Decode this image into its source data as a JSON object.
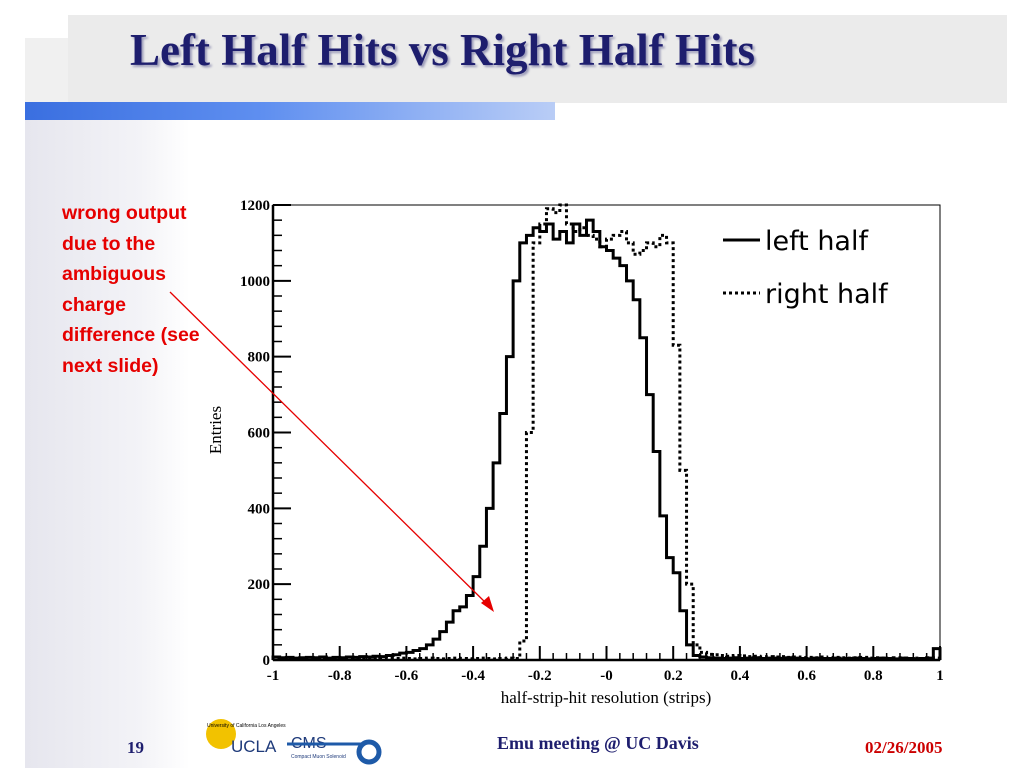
{
  "slide": {
    "title": "Left Half Hits vs Right Half Hits",
    "annotation_lines": [
      "wrong output",
      "due to the",
      "ambiguous",
      "charge",
      "difference (see",
      "next slide)"
    ],
    "footer": {
      "page_number": "19",
      "center_text": "Emu meeting @ UC Davis",
      "date": "02/26/2005"
    },
    "logo": {
      "university_text": "University of California Los Angeles",
      "ucla_text": "UCLA",
      "cms_text": "CMS",
      "cms_subtext": "Compact Muon Solenoid"
    },
    "colors": {
      "title": "#1e1e6e",
      "annotation": "#e60000",
      "footer_date": "#cc0000",
      "rule": "#3a6fe0"
    }
  },
  "chart_data": {
    "type": "line",
    "style": "step-histogram",
    "xlabel": "half-strip-hit resolution (strips)",
    "ylabel": "Entries",
    "xlim": [
      -1,
      1
    ],
    "ylim": [
      0,
      1200
    ],
    "x_ticks": [
      "-1",
      "-0.8",
      "-0.6",
      "-0.4",
      "-0.2",
      "-0",
      "0.2",
      "0.4",
      "0.6",
      "0.8",
      "1"
    ],
    "y_ticks": [
      "0",
      "200",
      "400",
      "600",
      "800",
      "1000",
      "1200"
    ],
    "legend_position": "top-right",
    "series": [
      {
        "name": "left half",
        "line_style": "solid",
        "x": [
          -1.0,
          -0.98,
          -0.96,
          -0.94,
          -0.92,
          -0.9,
          -0.88,
          -0.86,
          -0.84,
          -0.82,
          -0.8,
          -0.78,
          -0.76,
          -0.74,
          -0.72,
          -0.7,
          -0.68,
          -0.66,
          -0.64,
          -0.62,
          -0.6,
          -0.58,
          -0.56,
          -0.54,
          -0.52,
          -0.5,
          -0.48,
          -0.46,
          -0.44,
          -0.42,
          -0.4,
          -0.38,
          -0.36,
          -0.34,
          -0.32,
          -0.3,
          -0.28,
          -0.26,
          -0.24,
          -0.22,
          -0.2,
          -0.18,
          -0.16,
          -0.14,
          -0.12,
          -0.1,
          -0.08,
          -0.06,
          -0.04,
          -0.02,
          0.0,
          0.02,
          0.04,
          0.06,
          0.08,
          0.1,
          0.12,
          0.14,
          0.16,
          0.18,
          0.2,
          0.22,
          0.24,
          0.26,
          0.28,
          0.3,
          0.32,
          0.34,
          0.36,
          0.38,
          0.4,
          0.42,
          0.44,
          0.46,
          0.48,
          0.5,
          0.52,
          0.54,
          0.56,
          0.58,
          0.6,
          0.62,
          0.64,
          0.66,
          0.68,
          0.7,
          0.72,
          0.74,
          0.76,
          0.78,
          0.8,
          0.82,
          0.84,
          0.86,
          0.88,
          0.9,
          0.92,
          0.94,
          0.96,
          0.98
        ],
        "values": [
          8,
          6,
          7,
          5,
          6,
          7,
          6,
          8,
          5,
          7,
          6,
          8,
          7,
          9,
          8,
          10,
          9,
          12,
          14,
          18,
          20,
          25,
          30,
          40,
          55,
          75,
          100,
          130,
          140,
          170,
          220,
          300,
          400,
          520,
          650,
          800,
          1000,
          1100,
          1120,
          1140,
          1130,
          1150,
          1110,
          1130,
          1100,
          1150,
          1120,
          1160,
          1130,
          1090,
          1080,
          1060,
          1040,
          1000,
          950,
          850,
          700,
          550,
          380,
          270,
          230,
          130,
          40,
          12,
          8,
          6,
          5,
          4,
          5,
          6,
          4,
          5,
          6,
          4,
          5,
          5,
          4,
          6,
          5,
          4,
          3,
          5,
          4,
          4,
          5,
          3,
          4,
          5,
          4,
          3,
          4,
          5,
          4,
          3,
          5,
          4,
          3,
          4,
          5,
          30
        ]
      },
      {
        "name": "right half",
        "line_style": "dotted",
        "x": [
          -1.0,
          -0.98,
          -0.96,
          -0.94,
          -0.92,
          -0.9,
          -0.88,
          -0.86,
          -0.84,
          -0.82,
          -0.8,
          -0.78,
          -0.76,
          -0.74,
          -0.72,
          -0.7,
          -0.68,
          -0.66,
          -0.64,
          -0.62,
          -0.6,
          -0.58,
          -0.56,
          -0.54,
          -0.52,
          -0.5,
          -0.48,
          -0.46,
          -0.44,
          -0.42,
          -0.4,
          -0.38,
          -0.36,
          -0.34,
          -0.32,
          -0.3,
          -0.28,
          -0.26,
          -0.24,
          -0.22,
          -0.2,
          -0.18,
          -0.16,
          -0.14,
          -0.12,
          -0.1,
          -0.08,
          -0.06,
          -0.04,
          -0.02,
          0.0,
          0.02,
          0.04,
          0.06,
          0.08,
          0.1,
          0.12,
          0.14,
          0.16,
          0.18,
          0.2,
          0.22,
          0.24,
          0.26,
          0.28,
          0.3,
          0.32,
          0.34,
          0.36,
          0.38,
          0.4,
          0.42,
          0.44,
          0.46,
          0.48,
          0.5,
          0.52,
          0.54,
          0.56,
          0.58,
          0.6,
          0.62,
          0.64,
          0.66,
          0.68,
          0.7,
          0.72,
          0.74,
          0.76,
          0.78,
          0.8,
          0.82,
          0.84,
          0.86,
          0.88,
          0.9,
          0.92,
          0.94,
          0.96,
          0.98
        ],
        "values": [
          4,
          5,
          4,
          3,
          5,
          4,
          4,
          5,
          3,
          4,
          5,
          4,
          3,
          4,
          4,
          5,
          3,
          4,
          4,
          5,
          4,
          3,
          4,
          5,
          4,
          3,
          4,
          5,
          4,
          3,
          4,
          5,
          4,
          3,
          4,
          5,
          4,
          50,
          600,
          1100,
          1150,
          1190,
          1180,
          1200,
          1150,
          1130,
          1140,
          1120,
          1110,
          1090,
          1110,
          1120,
          1130,
          1100,
          1070,
          1080,
          1100,
          1090,
          1120,
          1100,
          830,
          500,
          200,
          40,
          20,
          15,
          14,
          12,
          10,
          12,
          11,
          9,
          10,
          8,
          9,
          8,
          9,
          7,
          8,
          6,
          7,
          6,
          8,
          5,
          7,
          6,
          5,
          6,
          7,
          5,
          6,
          5,
          4,
          6,
          5,
          4,
          5,
          4,
          6,
          5
        ]
      }
    ]
  }
}
